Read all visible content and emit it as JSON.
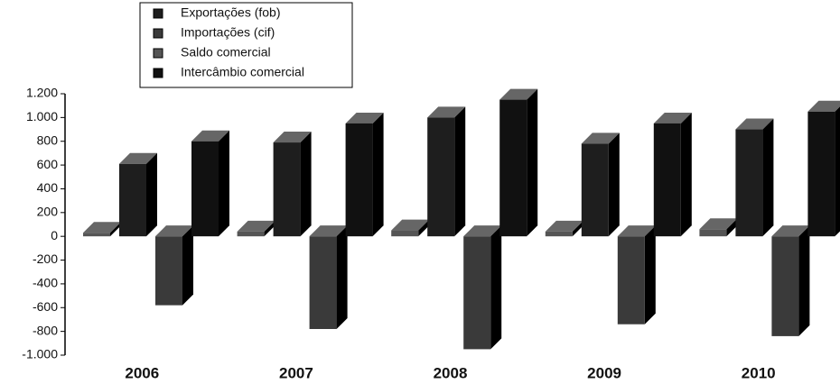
{
  "chart_data": {
    "type": "bar",
    "categories": [
      "2006",
      "2007",
      "2008",
      "2009",
      "2010"
    ],
    "series": [
      {
        "name": "Exportações (fob)",
        "color": "#1e1e1e",
        "values": [
          610,
          790,
          1000,
          780,
          900
        ]
      },
      {
        "name": "Importações (cif)",
        "color": "#3a3a3a",
        "values": [
          -580,
          -780,
          -950,
          -740,
          -840
        ]
      },
      {
        "name": "Saldo comercial",
        "color": "#555555",
        "values": [
          30,
          40,
          50,
          40,
          60
        ]
      },
      {
        "name": "Intercâmbio comercial",
        "color": "#111111",
        "values": [
          800,
          950,
          1150,
          950,
          1050
        ]
      }
    ],
    "ylim": [
      -1000,
      1200
    ],
    "yticks": [
      {
        "value": 1200,
        "label": "1.200"
      },
      {
        "value": 1000,
        "label": "1.000"
      },
      800,
      600,
      400,
      200,
      0,
      -200,
      -400,
      -600,
      -800,
      {
        "value": -1000,
        "label": "-1.000"
      }
    ]
  }
}
